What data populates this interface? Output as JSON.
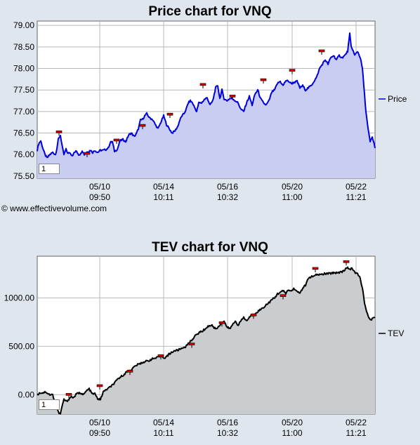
{
  "copyright": "© www.effectivevolume.com",
  "chart_data": [
    {
      "type": "area",
      "title": "Price chart for VNQ",
      "legend": "Price",
      "legend_position": "right",
      "line_color": "#0000dd",
      "fill_color": "#c9cdf2",
      "ylim": [
        75.45,
        79.1
      ],
      "y_ticks": [
        "79.00",
        "78.50",
        "78.00",
        "77.50",
        "77.00",
        "76.50",
        "76.00",
        "75.50"
      ],
      "y_tick_values": [
        79.0,
        78.5,
        78.0,
        77.5,
        77.0,
        76.5,
        76.0,
        75.5
      ],
      "x_ticks": [
        {
          "date": "05/10",
          "time": "09:50"
        },
        {
          "date": "05/14",
          "time": "10:11"
        },
        {
          "date": "05/16",
          "time": "10:32"
        },
        {
          "date": "05/20",
          "time": "11:00"
        },
        {
          "date": "05/22",
          "time": "11:21"
        }
      ],
      "corner_label": "1",
      "grid": true,
      "anchors": [
        [
          0,
          76.1
        ],
        [
          2,
          76.25
        ],
        [
          5,
          76.32
        ],
        [
          8,
          76.15
        ],
        [
          11,
          76.0
        ],
        [
          14,
          75.92
        ],
        [
          18,
          76.0
        ],
        [
          22,
          76.05
        ],
        [
          26,
          76.0
        ],
        [
          28,
          76.15
        ],
        [
          30,
          76.35
        ],
        [
          33,
          76.45
        ],
        [
          36,
          76.15
        ],
        [
          38,
          76.0
        ],
        [
          41,
          76.12
        ],
        [
          44,
          76.02
        ],
        [
          46,
          76.05
        ],
        [
          50,
          75.98
        ],
        [
          53,
          76.05
        ],
        [
          56,
          76.08
        ],
        [
          59,
          76.0
        ],
        [
          62,
          76.02
        ],
        [
          64,
          76.1
        ],
        [
          67,
          76.0
        ],
        [
          70,
          76.05
        ],
        [
          73,
          76.08
        ],
        [
          76,
          76.1
        ],
        [
          79,
          76.05
        ],
        [
          82,
          76.1
        ],
        [
          86,
          76.05
        ],
        [
          90,
          76.1
        ],
        [
          94,
          76.1
        ],
        [
          98,
          76.12
        ],
        [
          101,
          76.15
        ],
        [
          104,
          76.28
        ],
        [
          107,
          76.3
        ],
        [
          110,
          76.08
        ],
        [
          114,
          76.12
        ],
        [
          118,
          76.32
        ],
        [
          122,
          76.35
        ],
        [
          126,
          76.3
        ],
        [
          130,
          76.45
        ],
        [
          134,
          76.5
        ],
        [
          138,
          76.42
        ],
        [
          141,
          76.48
        ],
        [
          144,
          76.6
        ],
        [
          147,
          76.8
        ],
        [
          150,
          76.82
        ],
        [
          153,
          76.9
        ],
        [
          156,
          76.95
        ],
        [
          160,
          76.85
        ],
        [
          164,
          76.82
        ],
        [
          168,
          76.7
        ],
        [
          172,
          76.6
        ],
        [
          176,
          76.75
        ],
        [
          180,
          76.9
        ],
        [
          184,
          76.7
        ],
        [
          188,
          76.6
        ],
        [
          192,
          76.5
        ],
        [
          196,
          76.55
        ],
        [
          200,
          76.65
        ],
        [
          203,
          76.8
        ],
        [
          206,
          76.9
        ],
        [
          209,
          76.95
        ],
        [
          212,
          77.05
        ],
        [
          215,
          77.2
        ],
        [
          218,
          77.25
        ],
        [
          221,
          77.2
        ],
        [
          224,
          77.1
        ],
        [
          227,
          77.0
        ],
        [
          230,
          77.2
        ],
        [
          234,
          77.2
        ],
        [
          238,
          77.28
        ],
        [
          242,
          77.32
        ],
        [
          246,
          77.15
        ],
        [
          250,
          77.25
        ],
        [
          254,
          77.55
        ],
        [
          257,
          77.6
        ],
        [
          260,
          77.3
        ],
        [
          263,
          77.5
        ],
        [
          266,
          77.3
        ],
        [
          270,
          77.25
        ],
        [
          274,
          77.3
        ],
        [
          278,
          77.3
        ],
        [
          282,
          77.25
        ],
        [
          286,
          77.2
        ],
        [
          290,
          77.05
        ],
        [
          294,
          77.0
        ],
        [
          298,
          77.2
        ],
        [
          302,
          77.35
        ],
        [
          306,
          77.15
        ],
        [
          310,
          77.4
        ],
        [
          314,
          77.5
        ],
        [
          318,
          77.3
        ],
        [
          322,
          77.2
        ],
        [
          326,
          77.15
        ],
        [
          330,
          77.25
        ],
        [
          334,
          77.45
        ],
        [
          338,
          77.5
        ],
        [
          342,
          77.65
        ],
        [
          346,
          77.7
        ],
        [
          350,
          77.6
        ],
        [
          354,
          77.72
        ],
        [
          358,
          77.7
        ],
        [
          362,
          77.65
        ],
        [
          366,
          77.68
        ],
        [
          370,
          77.7
        ],
        [
          374,
          77.55
        ],
        [
          378,
          77.6
        ],
        [
          382,
          77.5
        ],
        [
          386,
          77.55
        ],
        [
          390,
          77.6
        ],
        [
          394,
          77.7
        ],
        [
          398,
          77.8
        ],
        [
          402,
          78.0
        ],
        [
          406,
          78.1
        ],
        [
          410,
          78.2
        ],
        [
          414,
          78.1
        ],
        [
          418,
          78.25
        ],
        [
          422,
          78.3
        ],
        [
          426,
          78.2
        ],
        [
          430,
          78.3
        ],
        [
          434,
          78.25
        ],
        [
          438,
          78.3
        ],
        [
          442,
          78.4
        ],
        [
          445,
          78.8
        ],
        [
          447,
          78.5
        ],
        [
          449,
          78.45
        ],
        [
          452,
          78.3
        ],
        [
          456,
          78.4
        ],
        [
          460,
          78.25
        ],
        [
          463,
          78.0
        ],
        [
          465,
          77.6
        ],
        [
          468,
          77.0
        ],
        [
          471,
          76.6
        ],
        [
          474,
          76.3
        ],
        [
          477,
          76.4
        ],
        [
          479,
          76.3
        ],
        [
          481,
          76.15
        ]
      ],
      "markers": [
        [
          31,
          76.52
        ],
        [
          71,
          76.02
        ],
        [
          113,
          76.33
        ],
        [
          150,
          76.67
        ],
        [
          189,
          76.93
        ],
        [
          236,
          77.62
        ],
        [
          278,
          77.35
        ],
        [
          322,
          77.73
        ],
        [
          363,
          77.95
        ],
        [
          405,
          78.4
        ]
      ]
    },
    {
      "type": "area",
      "title": "TEV chart for VNQ",
      "legend": "TEV",
      "legend_position": "right",
      "line_color": "#000000",
      "fill_color": "#cacdcf",
      "ylim": [
        -200,
        1430
      ],
      "y_ticks": [
        "1000.00",
        "500.00",
        "0.00"
      ],
      "y_tick_values": [
        1000,
        500,
        0
      ],
      "x_ticks": [
        {
          "date": "05/10",
          "time": "09:50"
        },
        {
          "date": "05/14",
          "time": "10:11"
        },
        {
          "date": "05/16",
          "time": "10:32"
        },
        {
          "date": "05/20",
          "time": "11:00"
        },
        {
          "date": "05/22",
          "time": "11:21"
        }
      ],
      "corner_label": "1",
      "grid": true,
      "anchors": [
        [
          0,
          0
        ],
        [
          4,
          20
        ],
        [
          8,
          20
        ],
        [
          12,
          30
        ],
        [
          18,
          0
        ],
        [
          22,
          0
        ],
        [
          26,
          -90
        ],
        [
          30,
          -180
        ],
        [
          33,
          -200
        ],
        [
          36,
          -100
        ],
        [
          38,
          -50
        ],
        [
          42,
          -70
        ],
        [
          48,
          -20
        ],
        [
          52,
          -30
        ],
        [
          56,
          10
        ],
        [
          62,
          20
        ],
        [
          66,
          0
        ],
        [
          70,
          40
        ],
        [
          74,
          60
        ],
        [
          78,
          10
        ],
        [
          82,
          10
        ],
        [
          86,
          -40
        ],
        [
          90,
          -50
        ],
        [
          94,
          30
        ],
        [
          98,
          50
        ],
        [
          104,
          80
        ],
        [
          110,
          120
        ],
        [
          116,
          170
        ],
        [
          122,
          200
        ],
        [
          128,
          240
        ],
        [
          134,
          260
        ],
        [
          140,
          300
        ],
        [
          146,
          320
        ],
        [
          152,
          340
        ],
        [
          158,
          350
        ],
        [
          164,
          370
        ],
        [
          170,
          380
        ],
        [
          176,
          400
        ],
        [
          182,
          380
        ],
        [
          188,
          420
        ],
        [
          194,
          450
        ],
        [
          200,
          460
        ],
        [
          206,
          480
        ],
        [
          212,
          500
        ],
        [
          218,
          550
        ],
        [
          224,
          600
        ],
        [
          230,
          640
        ],
        [
          236,
          660
        ],
        [
          242,
          700
        ],
        [
          248,
          720
        ],
        [
          254,
          680
        ],
        [
          258,
          700
        ],
        [
          262,
          740
        ],
        [
          266,
          760
        ],
        [
          270,
          700
        ],
        [
          274,
          680
        ],
        [
          278,
          720
        ],
        [
          282,
          760
        ],
        [
          286,
          720
        ],
        [
          290,
          760
        ],
        [
          294,
          800
        ],
        [
          298,
          760
        ],
        [
          302,
          800
        ],
        [
          306,
          820
        ],
        [
          310,
          840
        ],
        [
          314,
          860
        ],
        [
          318,
          880
        ],
        [
          322,
          900
        ],
        [
          326,
          930
        ],
        [
          330,
          950
        ],
        [
          334,
          980
        ],
        [
          338,
          1000
        ],
        [
          342,
          1040
        ],
        [
          346,
          1060
        ],
        [
          350,
          1070
        ],
        [
          354,
          1050
        ],
        [
          358,
          1080
        ],
        [
          362,
          1070
        ],
        [
          366,
          1100
        ],
        [
          370,
          1060
        ],
        [
          374,
          1050
        ],
        [
          378,
          1100
        ],
        [
          382,
          1130
        ],
        [
          386,
          1200
        ],
        [
          390,
          1220
        ],
        [
          394,
          1220
        ],
        [
          398,
          1240
        ],
        [
          404,
          1240
        ],
        [
          410,
          1250
        ],
        [
          416,
          1250
        ],
        [
          422,
          1260
        ],
        [
          428,
          1260
        ],
        [
          434,
          1270
        ],
        [
          440,
          1300
        ],
        [
          442,
          1320
        ],
        [
          444,
          1290
        ],
        [
          448,
          1310
        ],
        [
          452,
          1260
        ],
        [
          456,
          1250
        ],
        [
          460,
          1200
        ],
        [
          463,
          1100
        ],
        [
          466,
          950
        ],
        [
          469,
          850
        ],
        [
          473,
          780
        ],
        [
          477,
          780
        ],
        [
          481,
          800
        ]
      ],
      "markers": [
        [
          45,
          0
        ],
        [
          89,
          90
        ],
        [
          132,
          240
        ],
        [
          176,
          400
        ],
        [
          220,
          520
        ],
        [
          263,
          740
        ],
        [
          308,
          820
        ],
        [
          350,
          1020
        ],
        [
          396,
          1300
        ],
        [
          440,
          1370
        ]
      ]
    }
  ]
}
